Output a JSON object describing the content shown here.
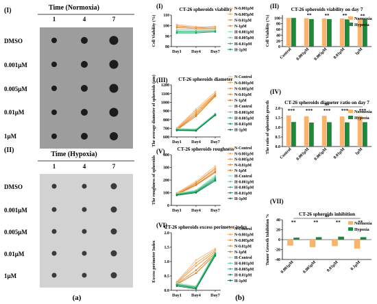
{
  "panel_a": {
    "label": "(a)",
    "normoxia": {
      "roman": "(I)",
      "header": "Time (Normoxia)",
      "days": [
        "1",
        "4",
        "7"
      ],
      "rows": [
        "DMSO",
        "0.001μM",
        "0.005μM",
        "0.01μM",
        "1μM"
      ]
    },
    "hypoxia": {
      "roman": "(II)",
      "header": "Time (Hypoxia)",
      "days": [
        "1",
        "4",
        "7"
      ],
      "rows": [
        "DMSO",
        "0.001μM",
        "0.005μM",
        "0.01μM",
        "1μM"
      ]
    }
  },
  "panel_b": {
    "label": "(b)"
  },
  "colors": {
    "normoxia": "#f6b46c",
    "hypoxia": "#1a8a3a",
    "n_lines": [
      "#f3c08c",
      "#f6a85a",
      "#ee9a45",
      "#e58b3a",
      "#d9822e"
    ],
    "h_lines": [
      "#a6dfc0",
      "#6fd0a0",
      "#37b87a",
      "#1ea064",
      "#12804b"
    ]
  },
  "chart_data": [
    {
      "id": "I",
      "roman": "(I)",
      "type": "line",
      "title": "CT-26 spheroids viability",
      "ylabel": "Cell Viability (%)",
      "categories": [
        "Day1",
        "Day4",
        "Day7"
      ],
      "yticks": [
        "80",
        "90",
        "100",
        "110"
      ],
      "ylim": [
        80,
        110
      ],
      "legend": [
        "N-0.001μM",
        "N-0.005μM",
        "N-0.01μM",
        "N-1μM",
        "H-0.001μM",
        "H-0.005μM",
        "H-0.01μM",
        "H-1μM"
      ],
      "series": [
        {
          "group": "N",
          "values": [
            101,
            99,
            98
          ]
        },
        {
          "group": "N",
          "values": [
            100,
            98,
            97
          ]
        },
        {
          "group": "N",
          "values": [
            99,
            98,
            99
          ]
        },
        {
          "group": "N",
          "values": [
            98,
            97,
            97
          ]
        },
        {
          "group": "H",
          "values": [
            96,
            96,
            96
          ]
        },
        {
          "group": "H",
          "values": [
            95,
            95,
            95
          ]
        },
        {
          "group": "H",
          "values": [
            94,
            94,
            95
          ]
        },
        {
          "group": "H",
          "values": [
            93,
            93,
            94
          ]
        }
      ]
    },
    {
      "id": "II",
      "roman": "(II)",
      "type": "bar",
      "title": "CT-26 spheroids viability on day 7",
      "ylabel": "Cell Viability (%)",
      "categories": [
        "Control",
        "0.001μM",
        "0.005μM",
        "0.01μM",
        "1μM"
      ],
      "yticks": [
        "0",
        "20",
        "40",
        "60",
        "80",
        "100"
      ],
      "ylim": [
        0,
        110
      ],
      "legend": [
        "Normoxia",
        "Hypoxia"
      ],
      "series": [
        {
          "name": "Normoxia",
          "values": [
            100,
            99,
            98,
            98,
            97
          ]
        },
        {
          "name": "Hypoxia",
          "values": [
            100,
            96,
            96,
            95,
            95
          ]
        }
      ],
      "annotations": [
        "**",
        "**",
        "**",
        "**"
      ],
      "legend_position": "top-right"
    },
    {
      "id": "III",
      "roman": "(III)",
      "type": "line",
      "title": "CT-26 spheroids diameter",
      "ylabel": "The average diameter of spheroids (μm)",
      "categories": [
        "Day1",
        "Day4",
        "Day7"
      ],
      "yticks": [
        "600",
        "700",
        "800",
        "900",
        "1000",
        "1100",
        "1200"
      ],
      "ylim": [
        600,
        1200
      ],
      "legend": [
        "N-Control",
        "N-0.001μM",
        "N-0.005μM",
        "N-0.01μM",
        "N-1μM",
        "H-Control",
        "H-0.001μM",
        "H-0.005μM",
        "H-0.01μM",
        "H-1μM"
      ],
      "series": [
        {
          "group": "N",
          "values": [
            705,
            920,
            1120
          ]
        },
        {
          "group": "N",
          "values": [
            700,
            900,
            1100
          ]
        },
        {
          "group": "N",
          "values": [
            690,
            880,
            1090
          ]
        },
        {
          "group": "N",
          "values": [
            685,
            860,
            1080
          ]
        },
        {
          "group": "N",
          "values": [
            680,
            840,
            1070
          ]
        },
        {
          "group": "H",
          "values": [
            700,
            690,
            870
          ]
        },
        {
          "group": "H",
          "values": [
            690,
            685,
            865
          ]
        },
        {
          "group": "H",
          "values": [
            685,
            680,
            860
          ]
        },
        {
          "group": "H",
          "values": [
            680,
            675,
            855
          ]
        },
        {
          "group": "H",
          "values": [
            675,
            670,
            850
          ]
        }
      ]
    },
    {
      "id": "IV",
      "roman": "(IV)",
      "type": "bar",
      "title": "CT-26 spheroids diameter ratio on day 7",
      "ylabel": "The ratio of spheroids growth",
      "categories": [
        "Control",
        "0.001μM",
        "0.005μM",
        "0.01μM",
        "1μM"
      ],
      "yticks": [
        "0.0",
        "0.5",
        "1.0",
        "1.5",
        "2.0"
      ],
      "ylim": [
        0,
        2.0
      ],
      "legend": [
        "Normoxia",
        "Hypoxia"
      ],
      "series": [
        {
          "name": "Normoxia",
          "values": [
            1.62,
            1.58,
            1.6,
            1.57,
            1.6
          ]
        },
        {
          "name": "Hypoxia",
          "values": [
            1.28,
            1.25,
            1.27,
            1.26,
            1.27
          ]
        }
      ],
      "annotations": [
        "***",
        "***",
        "***",
        "***",
        "***"
      ],
      "ns": "ns",
      "legend_position": "top-right"
    },
    {
      "id": "V",
      "roman": "(V)",
      "type": "line",
      "title": "CT-26 spheroids roughness",
      "ylabel": "The roughness of spheroids",
      "categories": [
        "Day1",
        "Day4",
        "Day7"
      ],
      "yticks": [
        "0",
        "100",
        "200",
        "300",
        "400"
      ],
      "ylim": [
        0,
        400
      ],
      "legend": [
        "N-Control",
        "N-0.001μM",
        "N-0.005μM",
        "N-0.01μM",
        "N-1μM",
        "H-Control",
        "H-0.001μM",
        "H-0.005μM",
        "H-0.01μM",
        "H-1μM"
      ],
      "series": [
        {
          "group": "N",
          "values": [
            100,
            190,
            310
          ]
        },
        {
          "group": "N",
          "values": [
            95,
            180,
            295
          ]
        },
        {
          "group": "N",
          "values": [
            90,
            175,
            285
          ]
        },
        {
          "group": "N",
          "values": [
            90,
            165,
            270
          ]
        },
        {
          "group": "N",
          "values": [
            85,
            160,
            260
          ]
        },
        {
          "group": "H",
          "values": [
            95,
            120,
            235
          ]
        },
        {
          "group": "H",
          "values": [
            90,
            115,
            225
          ]
        },
        {
          "group": "H",
          "values": [
            88,
            110,
            215
          ]
        },
        {
          "group": "H",
          "values": [
            85,
            105,
            205
          ]
        },
        {
          "group": "H",
          "values": [
            80,
            100,
            195
          ]
        }
      ]
    },
    {
      "id": "VI",
      "roman": "(VI)",
      "type": "line",
      "title": "CT-26 spheroids excess perimeter index",
      "ylabel": "Excess perimeter Index",
      "categories": [
        "Day1",
        "Day4",
        "Day7"
      ],
      "yticks": [
        "0.0",
        "0.5",
        "1.0",
        "1.5",
        "2.0"
      ],
      "ylim": [
        0,
        2.0
      ],
      "legend": [
        "N-Control",
        "N-0.001μM",
        "N-0.005μM",
        "N-0.01μM",
        "N-1μM",
        "H-Control",
        "H-0.001μM",
        "H-0.005μM",
        "H-0.01μM",
        "H-1μM"
      ],
      "series": [
        {
          "group": "N",
          "values": [
            0.3,
            1.05,
            1.45
          ]
        },
        {
          "group": "N",
          "values": [
            0.28,
            0.95,
            1.4
          ]
        },
        {
          "group": "N",
          "values": [
            0.25,
            0.85,
            1.35
          ]
        },
        {
          "group": "N",
          "values": [
            0.22,
            0.7,
            1.3
          ]
        },
        {
          "group": "N",
          "values": [
            0.2,
            0.6,
            1.25
          ]
        },
        {
          "group": "H",
          "values": [
            0.25,
            0.15,
            1.35
          ]
        },
        {
          "group": "H",
          "values": [
            0.22,
            0.12,
            1.3
          ]
        },
        {
          "group": "H",
          "values": [
            0.2,
            0.1,
            1.28
          ]
        },
        {
          "group": "H",
          "values": [
            0.18,
            0.08,
            1.25
          ]
        },
        {
          "group": "H",
          "values": [
            0.15,
            0.05,
            1.2
          ]
        }
      ]
    },
    {
      "id": "VII",
      "roman": "(VII)",
      "type": "bar",
      "title": "CT-26 spheroids inhibition",
      "ylabel": "Tumor Growth Inhibition %",
      "categories": [
        "0.001μM",
        "0.005μM",
        "0.01μM",
        "0.1μM"
      ],
      "yticks": [
        "-40",
        "-20",
        "0",
        "20",
        "40"
      ],
      "ylim": [
        -40,
        40
      ],
      "legend": [
        "Normoxia",
        "Hypoxia"
      ],
      "series": [
        {
          "name": "Normoxia",
          "values": [
            -12,
            -15,
            -13,
            -18
          ]
        },
        {
          "name": "Hypoxia",
          "values": [
            4,
            5,
            6,
            5
          ]
        }
      ],
      "annotations": [
        "**",
        "**",
        "**",
        "**"
      ],
      "ns": "ns",
      "legend_position": "top-right"
    }
  ]
}
